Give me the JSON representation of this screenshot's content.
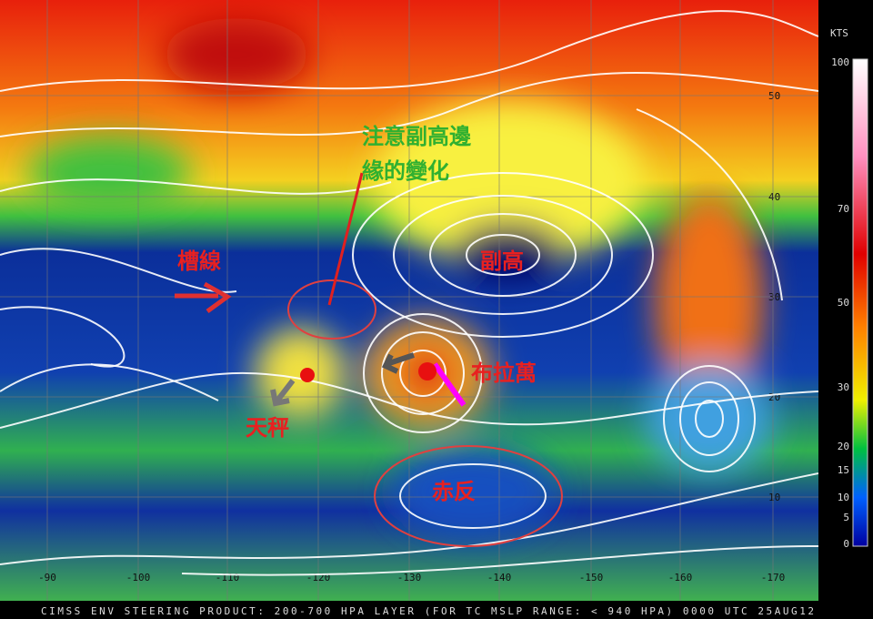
{
  "map": {
    "lat_labels": [
      "50",
      "40",
      "30",
      "20",
      "10"
    ],
    "lon_labels": [
      "-90",
      "-100",
      "-110",
      "-120",
      "-130",
      "-140",
      "-150",
      "-160",
      "-170"
    ]
  },
  "colorbar": {
    "unit": "KTS",
    "labels": [
      "100",
      "70",
      "50",
      "30",
      "20",
      "15",
      "10",
      "5",
      "0"
    ]
  },
  "annotations": {
    "note_line1": "注意副高邊",
    "note_line2": "緣的變化",
    "trough": "槽線",
    "subtropical_high": "副高",
    "bolaven": "布拉萬",
    "tembin": "天秤",
    "anticyclone": "赤反"
  },
  "footer": "CIMSS ENV STEERING PRODUCT: 200-700 HPA LAYER (FOR TC MSLP RANGE: < 940 HPA)  0000 UTC  25AUG12"
}
